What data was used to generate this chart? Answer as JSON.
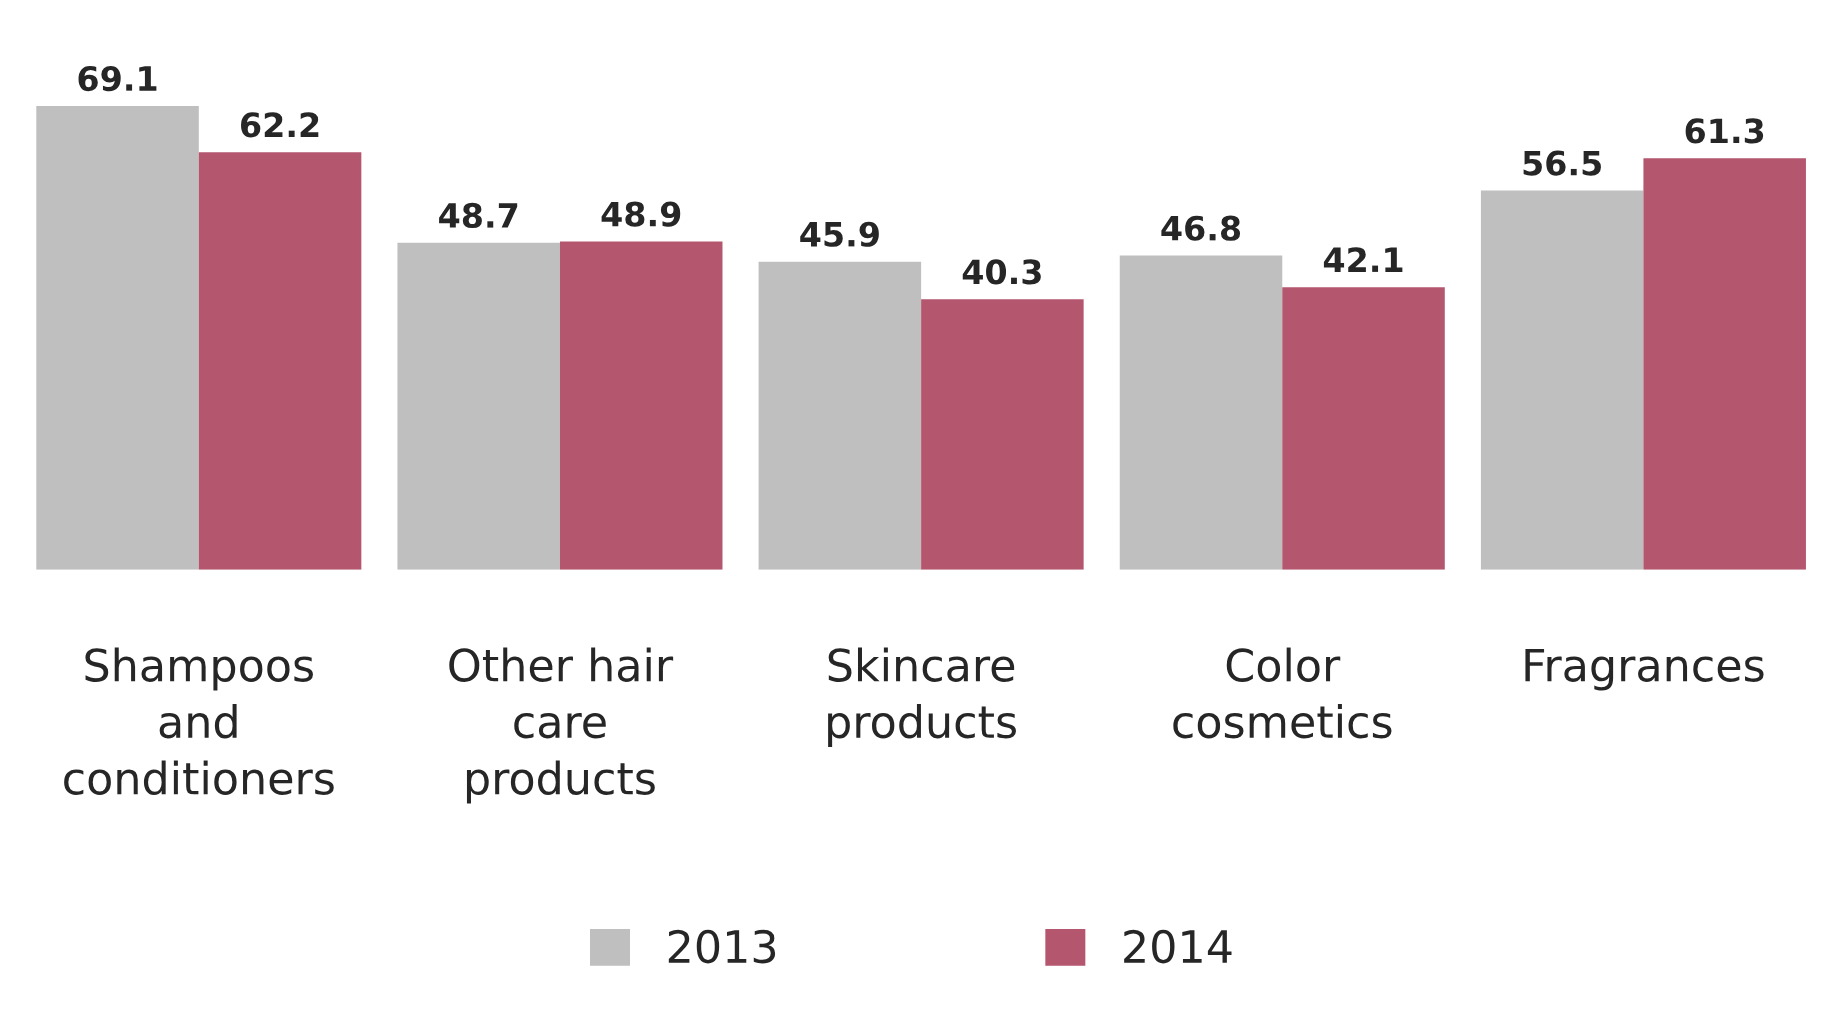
{
  "chart_data": {
    "type": "bar",
    "categories": [
      "Shampoos\nand\nconditioners",
      "Other hair\ncare\nproducts",
      "Skincare\nproducts",
      "Color\ncosmetics",
      "Fragrances"
    ],
    "series": [
      {
        "name": "2013",
        "color": "#bfbfbf",
        "values": [
          69.1,
          48.7,
          45.9,
          46.8,
          56.5
        ]
      },
      {
        "name": "2014",
        "color": "#b5566f",
        "values": [
          62.2,
          48.9,
          40.3,
          42.1,
          61.3
        ]
      }
    ],
    "data_labels": true,
    "legend": "bottom",
    "grid": false
  }
}
